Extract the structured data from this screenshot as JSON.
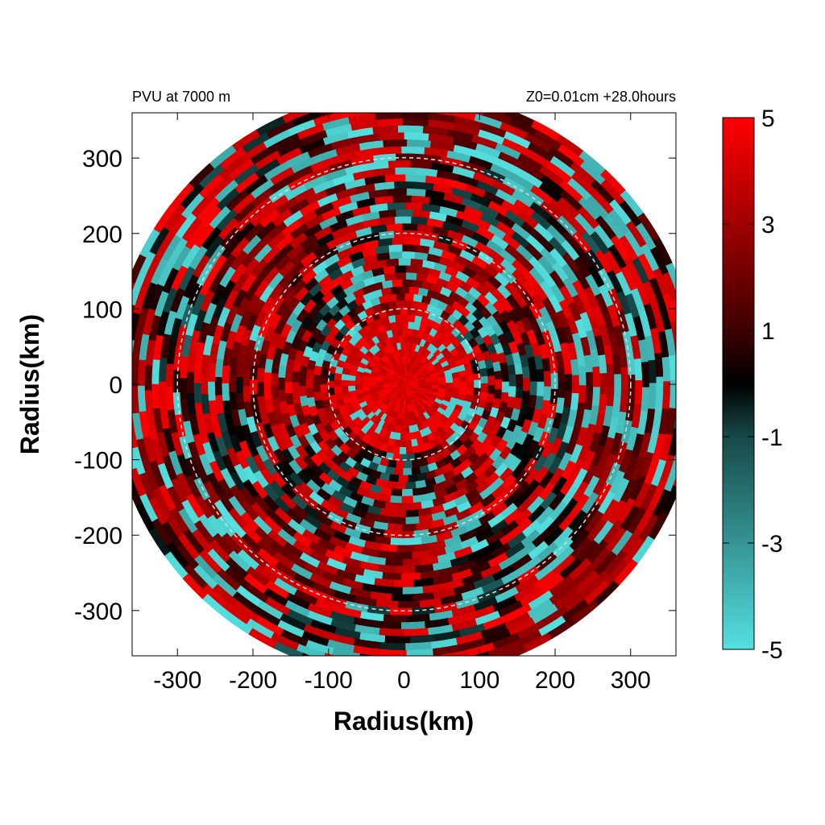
{
  "chart_data": {
    "type": "heatmap",
    "title_left": "PVU at  7000 m",
    "title_right": "Z0=0.01cm  +28.0hours",
    "xlabel": "Radius(km)",
    "ylabel": "Radius(km)",
    "xlim": [
      -360,
      360
    ],
    "ylim": [
      -360,
      360
    ],
    "x_ticks": [
      -300,
      -200,
      -100,
      0,
      100,
      200,
      300
    ],
    "y_ticks": [
      -300,
      -200,
      -100,
      0,
      100,
      200,
      300
    ],
    "x_tick_labels": [
      "-300",
      "-200",
      "-100",
      "0",
      "100",
      "200",
      "300"
    ],
    "y_tick_labels": [
      "-300",
      "-200",
      "-100",
      "0",
      "100",
      "200",
      "300"
    ],
    "domain_radius_km": 390,
    "reference_circles_km": [
      100,
      200,
      300
    ],
    "colorbar": {
      "min": -5,
      "max": 5,
      "ticks": [
        5,
        3,
        1,
        -1,
        -3,
        -5
      ],
      "tick_labels": [
        "5",
        "3",
        "1",
        "-1",
        "-3",
        "-5"
      ],
      "stops": [
        {
          "value": -5,
          "color": "#55e0e0"
        },
        {
          "value": -1,
          "color": "#174848"
        },
        {
          "value": 0,
          "color": "#000000"
        },
        {
          "value": 1,
          "color": "#3c0000"
        },
        {
          "value": 3,
          "color": "#a00000"
        },
        {
          "value": 5,
          "color": "#ff0000"
        }
      ]
    },
    "field_description": {
      "core_radius_km": 90,
      "core_value": 5
    }
  }
}
